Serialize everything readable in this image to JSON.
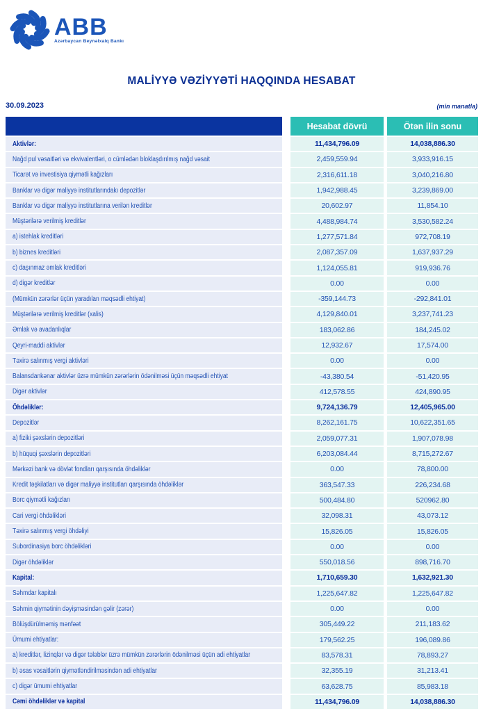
{
  "brand": {
    "name": "ABB",
    "tagline": "Azərbaycan Beynəlxalq Bankı",
    "logo_icon": "abb-swirl-icon",
    "brand_color": "#1b55b8"
  },
  "title": "MALİYYƏ VƏZİYYƏTİ HAQQINDA HESABAT",
  "date": "30.09.2023",
  "unit_note": "(min manatla)",
  "colors": {
    "header_bar_navy": "#0a34a0",
    "header_cell_teal": "#2bbeb4",
    "label_cell_bg": "#e8ecf7",
    "value_cell_bg": "#e3f4f2",
    "row_text_blue": "#2050b3",
    "bold_text_navy": "#0a2f9e"
  },
  "table": {
    "columns": [
      "Hesabat dövrü",
      "Ötən ilin sonu"
    ],
    "rows": [
      {
        "label": "Aktivlər:",
        "bold": true,
        "current": "11,434,796.09",
        "previous": "14,038,886.30"
      },
      {
        "label": "Nağd pul vəsaitləri və  ekvivalentləri, o cümlədən bloklaşdırılmış nağd vəsait",
        "bold": false,
        "current": "2,459,559.94",
        "previous": "3,933,916.15"
      },
      {
        "label": "Ticarət və investisiya qiymətli kağızları",
        "bold": false,
        "current": "2,316,611.18",
        "previous": "3,040,216.80"
      },
      {
        "label": "Banklar və digər maliyyə institutlarındakı depozitlər",
        "bold": false,
        "current": "1,942,988.45",
        "previous": "3,239,869.00"
      },
      {
        "label": "Banklar və digər maliyyə institutlarına verilən kreditlər",
        "bold": false,
        "current": "20,602.97",
        "previous": "11,854.10"
      },
      {
        "label": "Müştərilərə verilmiş kreditlər",
        "bold": false,
        "current": "4,488,984.74",
        "previous": "3,530,582.24"
      },
      {
        "label": "a) istehlak kreditləri",
        "bold": false,
        "current": "1,277,571.84",
        "previous": "972,708.19"
      },
      {
        "label": "b) biznes kreditləri",
        "bold": false,
        "current": "2,087,357.09",
        "previous": "1,637,937.29"
      },
      {
        "label": "c) daşınmaz əmlak kreditləri",
        "bold": false,
        "current": "1,124,055.81",
        "previous": "919,936.76"
      },
      {
        "label": "d) digər kreditlər",
        "bold": false,
        "current": "0.00",
        "previous": "0.00"
      },
      {
        "label": "(Mümkün zərərlər üçün yaradılan məqsədli ehtiyat)",
        "bold": false,
        "current": "-359,144.73",
        "previous": "-292,841.01"
      },
      {
        "label": "Müştərilərə verilmiş kreditlər (xalis)",
        "bold": false,
        "current": "4,129,840.01",
        "previous": "3,237,741.23"
      },
      {
        "label": "Əmlak və avadanlıqlar",
        "bold": false,
        "current": "183,062.86",
        "previous": "184,245.02"
      },
      {
        "label": "Qeyri-maddi aktivlər",
        "bold": false,
        "current": "12,932.67",
        "previous": "17,574.00"
      },
      {
        "label": "Təxirə salınmış vergi aktivləri",
        "bold": false,
        "current": "0.00",
        "previous": "0.00"
      },
      {
        "label": "Balansdankənar aktivlər üzrə mümkün zərərlərin ödənilməsi üçün məqsədli ehtiyat",
        "bold": false,
        "current": "-43,380.54",
        "previous": "-51,420.95"
      },
      {
        "label": "Digər aktivlər",
        "bold": false,
        "current": "412,578.55",
        "previous": "424,890.95"
      },
      {
        "label": "Öhdəliklər:",
        "bold": true,
        "current": "9,724,136.79",
        "previous": "12,405,965.00"
      },
      {
        "label": "Depozitlər",
        "bold": false,
        "current": "8,262,161.75",
        "previous": "10,622,351.65"
      },
      {
        "label": "a) fiziki şəxslərin depozitləri",
        "bold": false,
        "current": "2,059,077.31",
        "previous": "1,907,078.98"
      },
      {
        "label": "b) hüquqi şəxslərin depozitləri",
        "bold": false,
        "current": "6,203,084.44",
        "previous": "8,715,272.67"
      },
      {
        "label": "Mərkəzi bank və dövlət fondları qarşısında öhdəliklər",
        "bold": false,
        "current": "0.00",
        "previous": "78,800.00"
      },
      {
        "label": "Kredit təşkilatları və digər maliyyə institutları qarşısında öhdəliklər",
        "bold": false,
        "current": "363,547.33",
        "previous": "226,234.68"
      },
      {
        "label": "Borc qiymətli kağızları",
        "bold": false,
        "current": "500,484.80",
        "previous": "520962.80"
      },
      {
        "label": "Cari vergi öhdəlikləri",
        "bold": false,
        "current": "32,098.31",
        "previous": "43,073.12"
      },
      {
        "label": "Təxirə salınmış vergi öhdəliyi",
        "bold": false,
        "current": "15,826.05",
        "previous": "15,826.05"
      },
      {
        "label": "Subordinasiya borc öhdəlikləri",
        "bold": false,
        "current": "0.00",
        "previous": "0.00"
      },
      {
        "label": "Digər öhdəliklər",
        "bold": false,
        "current": "550,018.56",
        "previous": "898,716.70"
      },
      {
        "label": "Kapital:",
        "bold": true,
        "current": "1,710,659.30",
        "previous": "1,632,921.30"
      },
      {
        "label": "Səhmdar kapitalı",
        "bold": false,
        "current": "1,225,647.82",
        "previous": "1,225,647.82"
      },
      {
        "label": "Səhmin qiymətinin dəyişməsindən gəlir (zərər)",
        "bold": false,
        "current": "0.00",
        "previous": "0.00"
      },
      {
        "label": "Bölüşdürülməmiş mənfəət",
        "bold": false,
        "current": "305,449.22",
        "previous": "211,183.62"
      },
      {
        "label": "Ümumi ehtiyatlar:",
        "bold": false,
        "current": "179,562.25",
        "previous": "196,089.86"
      },
      {
        "label": "a) kreditlər, lizinqlər və digər tələblər üzrə mümkün zərərlərin ödənilməsi üçün adi ehtiyatlar",
        "bold": false,
        "current": "83,578.31",
        "previous": "78,893.27"
      },
      {
        "label": "b) əsas vəsaitlərin qiymətləndirilməsindən adi ehtiyatlar",
        "bold": false,
        "current": "32,355.19",
        "previous": "31,213.41"
      },
      {
        "label": "c) digər ümumi ehtiyatlar",
        "bold": false,
        "current": "63,628.75",
        "previous": "85,983.18"
      },
      {
        "label": "Cəmi öhdəliklər və kapital",
        "bold": true,
        "current": "11,434,796.09",
        "previous": "14,038,886.30"
      }
    ]
  }
}
